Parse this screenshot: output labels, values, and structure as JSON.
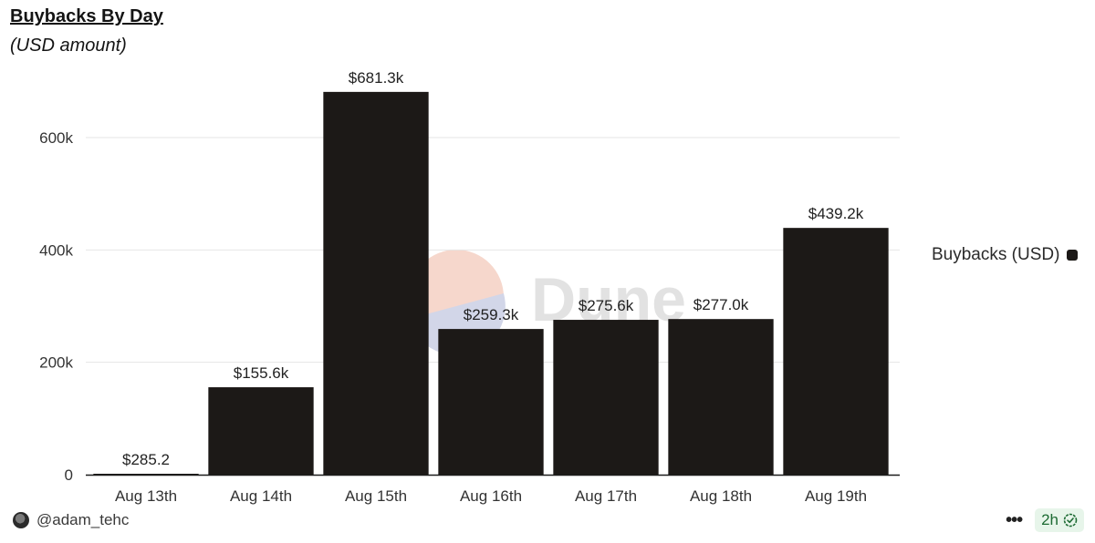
{
  "chart_data": {
    "type": "bar",
    "title": "Buybacks By Day",
    "subtitle": "(USD amount)",
    "categories": [
      "Aug 13th",
      "Aug 14th",
      "Aug 15th",
      "Aug 16th",
      "Aug 17th",
      "Aug 18th",
      "Aug 19th"
    ],
    "series": [
      {
        "name": "Buybacks (USD)",
        "values": [
          285.2,
          155600,
          681300,
          259300,
          275600,
          277000,
          439200
        ],
        "labels": [
          "$285.2",
          "$155.6k",
          "$681.3k",
          "$259.3k",
          "$275.6k",
          "$277.0k",
          "$439.2k"
        ],
        "color": "#1c1917"
      }
    ],
    "yticks": [
      0,
      200000,
      400000,
      600000
    ],
    "ytick_labels": [
      "0",
      "200k",
      "400k",
      "600k"
    ],
    "ylim": [
      0,
      600000
    ],
    "grid": true,
    "legend": "right"
  },
  "watermark": {
    "text": "Dune"
  },
  "footer": {
    "author": "@adam_tehc",
    "more_icon": "more-horizontal-icon",
    "age": "2h",
    "age_icon": "check-circle-icon"
  },
  "colors": {
    "bar": "#1c1917",
    "grid": "#e6e6e6",
    "axis": "#1c1c1c",
    "badge_bg": "#e7f5ea",
    "badge_fg": "#1d6b33"
  }
}
